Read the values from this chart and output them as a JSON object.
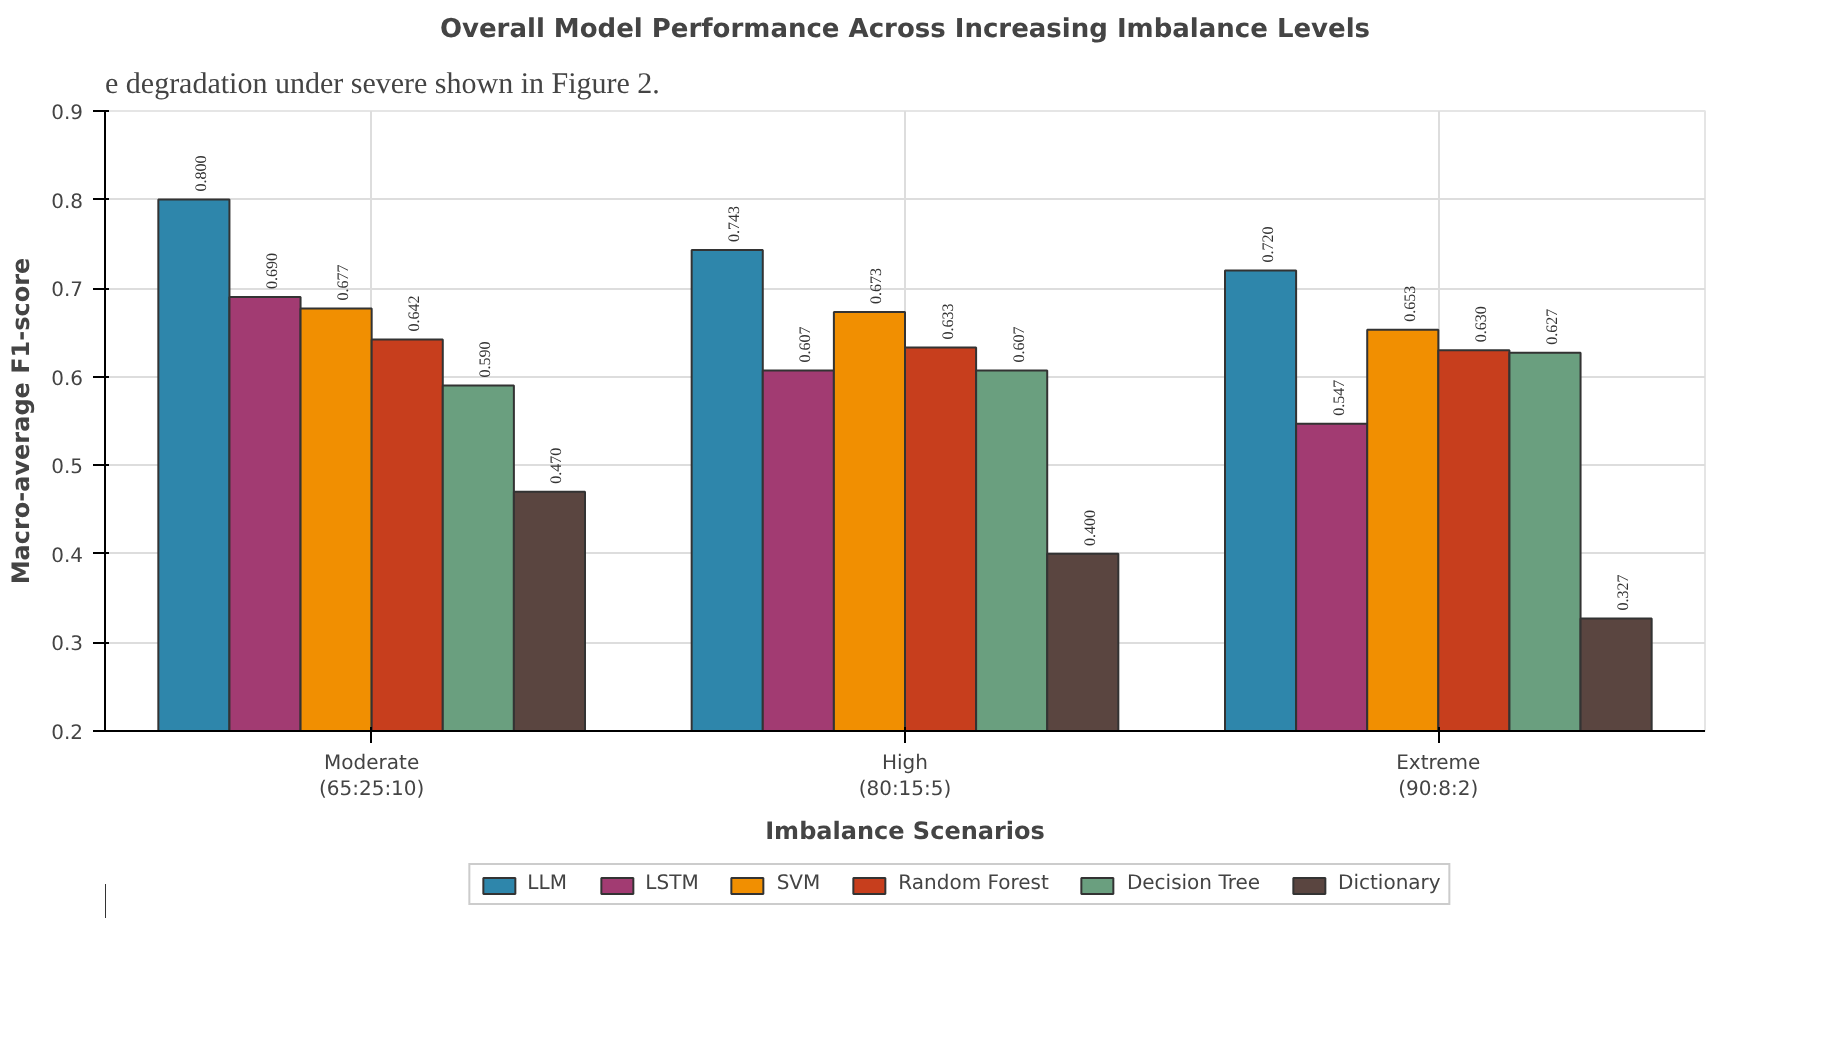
{
  "chart_data": {
    "type": "bar",
    "title": "Overall Model Performance Across Increasing Imbalance Levels",
    "xlabel": "Imbalance Scenarios",
    "ylabel": "Macro-average F1-score",
    "categories": [
      "Moderate\n(65:25:10)",
      "High\n(80:15:5)",
      "Extreme\n(90:8:2)"
    ],
    "series": [
      {
        "name": "LLM",
        "color": "#2e86ab",
        "values": [
          0.8,
          0.743,
          0.72
        ],
        "value_labels": [
          "0.800",
          "0.743",
          "0.720"
        ]
      },
      {
        "name": "LSTM",
        "color": "#a23b72",
        "values": [
          0.69,
          0.607,
          0.547
        ],
        "value_labels": [
          "0.690",
          "0.607",
          "0.547"
        ]
      },
      {
        "name": "SVM",
        "color": "#f18f01",
        "values": [
          0.677,
          0.673,
          0.653
        ],
        "value_labels": [
          "0.677",
          "0.673",
          "0.653"
        ]
      },
      {
        "name": "Random Forest",
        "color": "#c73e1d",
        "values": [
          0.642,
          0.633,
          0.63
        ],
        "value_labels": [
          "0.642",
          "0.633",
          "0.630"
        ]
      },
      {
        "name": "Decision Tree",
        "color": "#6a9f7f",
        "values": [
          0.59,
          0.607,
          0.627
        ],
        "value_labels": [
          "0.590",
          "0.607",
          "0.627"
        ]
      },
      {
        "name": "Dictionary",
        "color": "#5a4540",
        "values": [
          0.47,
          0.4,
          0.327
        ],
        "value_labels": [
          "0.470",
          "0.400",
          "0.327"
        ]
      }
    ],
    "ylim": [
      0.2,
      0.9
    ],
    "yticks": [
      0.2,
      0.3,
      0.4,
      0.5,
      0.6,
      0.7,
      0.8,
      0.9
    ],
    "grid": true,
    "legend": "bottom",
    "annotations": [
      "e degradation under severe shown in Figure 2."
    ]
  }
}
